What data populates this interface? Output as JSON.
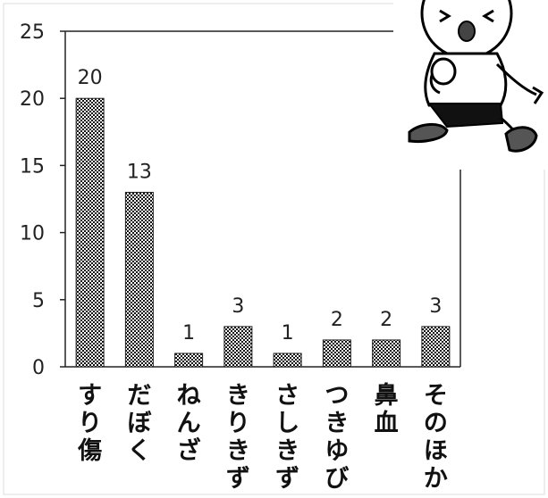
{
  "chart_data": {
    "type": "bar",
    "categories": [
      "すり傷",
      "だぼく",
      "ねんざ",
      "きりきず",
      "さしきず",
      "つきゆび",
      "鼻血",
      "そのほか"
    ],
    "values": [
      20,
      13,
      1,
      3,
      1,
      2,
      2,
      3
    ],
    "ylim": [
      0,
      25
    ],
    "yticks": [
      0,
      5,
      10,
      15,
      20,
      25
    ],
    "grid": false,
    "legend": "none",
    "bar_fill": "#222222"
  },
  "illustration": {
    "icon": "cartoon-child-with-scraped-knee"
  }
}
